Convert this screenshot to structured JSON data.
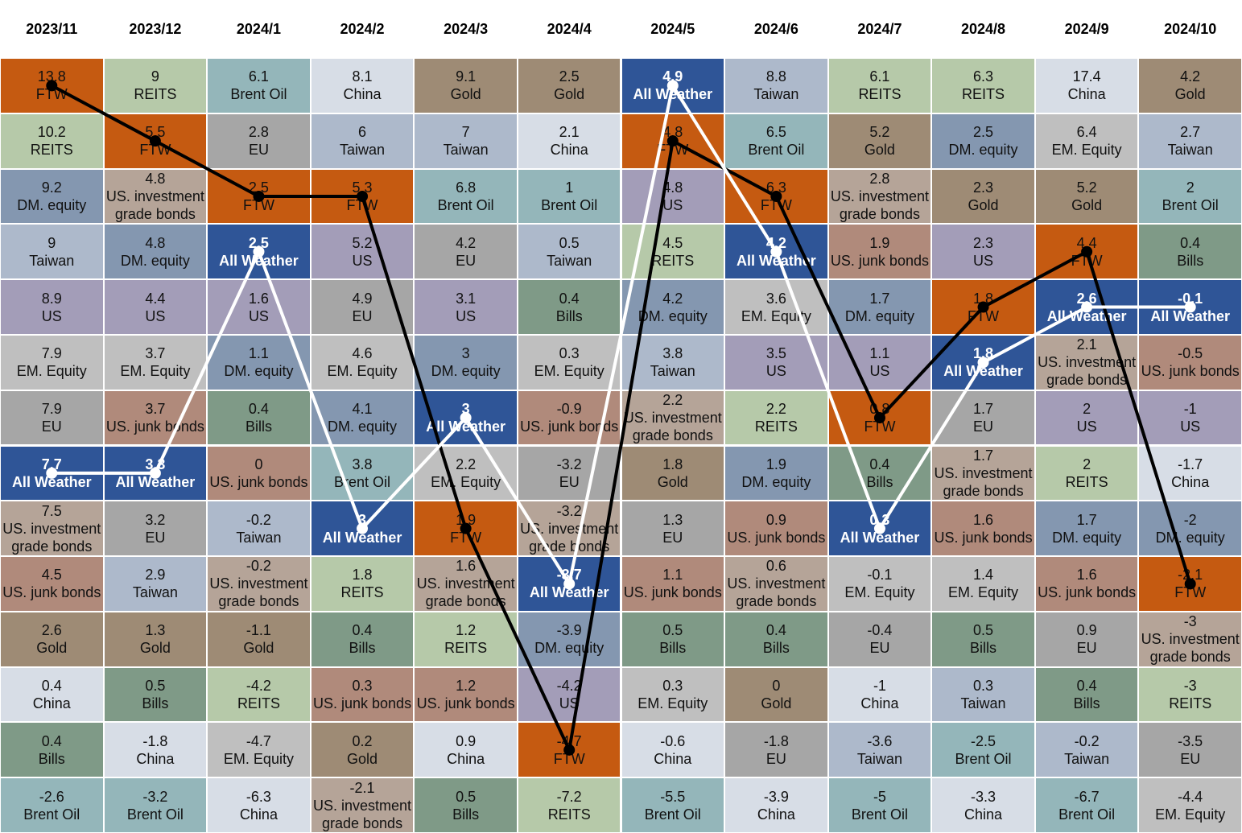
{
  "chart_data": {
    "type": "ranking",
    "colors": {
      "FTW": "#c55a11",
      "REITS": "#b6c9a9",
      "Brent Oil": "#94b6ba",
      "China": "#d7dde6",
      "Gold": "#9e8b75",
      "All Weather": "#2f5597",
      "Taiwan": "#adb9cb",
      "EU": "#a6a6a6",
      "US": "#a39db8",
      "DM. equity": "#8497b0",
      "EM. Equity": "#bfbfbf",
      "Bills": "#7f9a87",
      "US. junk bonds": "#b08a7b",
      "US. investment grade bonds": "#b5a498"
    },
    "lines": [
      {
        "name": "FTW",
        "color": "#000000"
      },
      {
        "name": "All Weather",
        "color": "#ffffff"
      }
    ],
    "columns": [
      {
        "period": "2023/11",
        "names": [
          "FTW",
          "REITS",
          "DM. equity",
          "Taiwan",
          "US",
          "EM. Equity",
          "EU",
          "All Weather",
          "US. investment grade bonds",
          "US. junk bonds",
          "Gold",
          "China",
          "Bills",
          "Brent Oil"
        ],
        "values": [
          13.8,
          10.2,
          9.2,
          9,
          8.9,
          7.9,
          7.9,
          7.7,
          7.5,
          4.5,
          2.6,
          0.4,
          0.4,
          -2.6
        ]
      },
      {
        "period": "2023/12",
        "names": [
          "REITS",
          "FTW",
          "US. investment grade bonds",
          "DM. equity",
          "US",
          "EM. Equity",
          "US. junk bonds",
          "All Weather",
          "EU",
          "Taiwan",
          "Gold",
          "Bills",
          "China",
          "Brent Oil"
        ],
        "values": [
          9,
          5.5,
          4.8,
          4.8,
          4.4,
          3.7,
          3.7,
          3.3,
          3.2,
          2.9,
          1.3,
          0.5,
          -1.8,
          -3.2
        ]
      },
      {
        "period": "2024/1",
        "names": [
          "Brent Oil",
          "EU",
          "FTW",
          "All Weather",
          "US",
          "DM. equity",
          "Bills",
          "US. junk bonds",
          "Taiwan",
          "US. investment grade bonds",
          "Gold",
          "REITS",
          "EM. Equity",
          "China"
        ],
        "values": [
          6.1,
          2.8,
          2.5,
          2.5,
          1.6,
          1.1,
          0.4,
          0,
          -0.2,
          -0.2,
          -1.1,
          -4.2,
          -4.7,
          -6.3
        ]
      },
      {
        "period": "2024/2",
        "names": [
          "China",
          "Taiwan",
          "FTW",
          "US",
          "EU",
          "EM. Equity",
          "DM. equity",
          "Brent Oil",
          "All Weather",
          "REITS",
          "Bills",
          "US. junk bonds",
          "Gold",
          "US. investment grade bonds"
        ],
        "values": [
          8.1,
          6,
          5.3,
          5.2,
          4.9,
          4.6,
          4.1,
          3.8,
          3,
          1.8,
          0.4,
          0.3,
          0.2,
          -2.1
        ]
      },
      {
        "period": "2024/3",
        "names": [
          "Gold",
          "Taiwan",
          "Brent Oil",
          "EU",
          "US",
          "DM. equity",
          "All Weather",
          "EM. Equity",
          "FTW",
          "US. investment grade bonds",
          "REITS",
          "US. junk bonds",
          "China",
          "Bills"
        ],
        "values": [
          9.1,
          7,
          6.8,
          4.2,
          3.1,
          3,
          3,
          2.2,
          1.9,
          1.6,
          1.2,
          1.2,
          0.9,
          0.5
        ]
      },
      {
        "period": "2024/4",
        "names": [
          "Gold",
          "China",
          "Brent Oil",
          "Taiwan",
          "Bills",
          "EM. Equity",
          "US. junk bonds",
          "EU",
          "US. investment grade bonds",
          "All Weather",
          "DM. equity",
          "US",
          "FTW",
          "REITS"
        ],
        "values": [
          2.5,
          2.1,
          1,
          0.5,
          0.4,
          0.3,
          -0.9,
          -3.2,
          -3.2,
          -3.7,
          -3.9,
          -4.2,
          -4.7,
          -7.2
        ]
      },
      {
        "period": "2024/5",
        "names": [
          "All Weather",
          "FTW",
          "US",
          "REITS",
          "DM. equity",
          "Taiwan",
          "US. investment grade bonds",
          "Gold",
          "EU",
          "US. junk bonds",
          "Bills",
          "EM. Equity",
          "China",
          "Brent Oil"
        ],
        "values": [
          4.9,
          4.8,
          4.8,
          4.5,
          4.2,
          3.8,
          2.2,
          1.8,
          1.3,
          1.1,
          0.5,
          0.3,
          -0.6,
          -5.5
        ]
      },
      {
        "period": "2024/6",
        "names": [
          "Taiwan",
          "Brent Oil",
          "FTW",
          "All Weather",
          "EM. Equity",
          "US",
          "REITS",
          "DM. equity",
          "US. junk bonds",
          "US. investment grade bonds",
          "Bills",
          "Gold",
          "EU",
          "China"
        ],
        "values": [
          8.8,
          6.5,
          6.3,
          4.2,
          3.6,
          3.5,
          2.2,
          1.9,
          0.9,
          0.6,
          0.4,
          0,
          -1.8,
          -3.9
        ]
      },
      {
        "period": "2024/7",
        "names": [
          "REITS",
          "Gold",
          "US. investment grade bonds",
          "US. junk bonds",
          "DM. equity",
          "US",
          "FTW",
          "Bills",
          "All Weather",
          "EM. Equity",
          "EU",
          "China",
          "Taiwan",
          "Brent Oil"
        ],
        "values": [
          6.1,
          5.2,
          2.8,
          1.9,
          1.7,
          1.1,
          0.8,
          0.4,
          0.3,
          -0.1,
          -0.4,
          -1,
          -3.6,
          -5
        ]
      },
      {
        "period": "2024/8",
        "names": [
          "REITS",
          "DM. equity",
          "Gold",
          "US",
          "FTW",
          "All Weather",
          "EU",
          "US. investment grade bonds",
          "US. junk bonds",
          "EM. Equity",
          "Bills",
          "Taiwan",
          "Brent Oil",
          "China"
        ],
        "values": [
          6.3,
          2.5,
          2.3,
          2.3,
          1.8,
          1.8,
          1.7,
          1.7,
          1.6,
          1.4,
          0.5,
          0.3,
          -2.5,
          -3.3
        ]
      },
      {
        "period": "2024/9",
        "names": [
          "China",
          "EM. Equity",
          "Gold",
          "FTW",
          "All Weather",
          "US. investment grade bonds",
          "US",
          "REITS",
          "DM. equity",
          "US. junk bonds",
          "EU",
          "Bills",
          "Taiwan",
          "Brent Oil"
        ],
        "values": [
          17.4,
          6.4,
          5.2,
          4.4,
          2.6,
          2.1,
          2,
          2,
          1.7,
          1.6,
          0.9,
          0.4,
          -0.2,
          -6.7
        ]
      },
      {
        "period": "2024/10",
        "names": [
          "Gold",
          "Taiwan",
          "Brent Oil",
          "Bills",
          "All Weather",
          "US. junk bonds",
          "US",
          "China",
          "DM. equity",
          "FTW",
          "US. investment grade bonds",
          "REITS",
          "EU",
          "EM. Equity"
        ],
        "values": [
          4.2,
          2.7,
          2,
          0.4,
          -0.1,
          -0.5,
          -1,
          -1.7,
          -2,
          -2.1,
          -3,
          -3,
          -3.5,
          -4.4
        ]
      }
    ]
  }
}
